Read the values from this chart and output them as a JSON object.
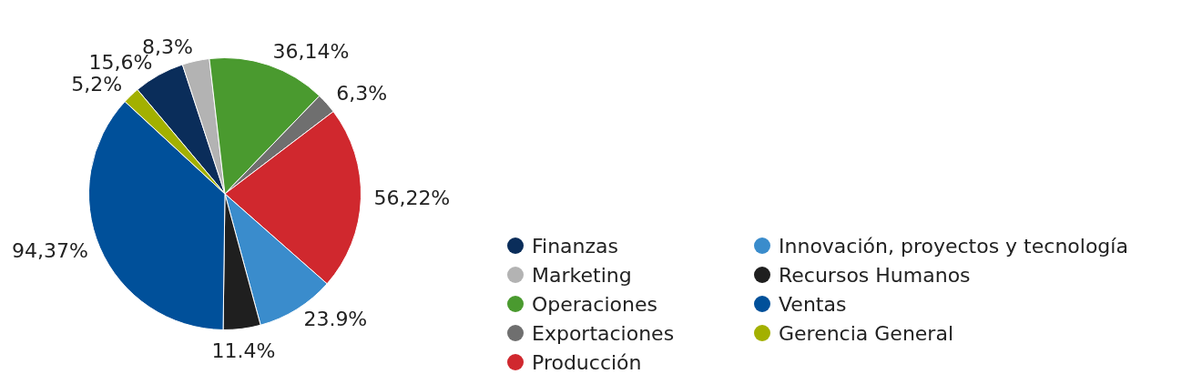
{
  "chart_data": {
    "type": "pie",
    "categories": [
      "Finanzas",
      "Marketing",
      "Operaciones",
      "Exportaciones",
      "Producción",
      "Innovación, proyectos y tecnología",
      "Recursos Humanos",
      "Ventas",
      "Gerencia General"
    ],
    "values": [
      15.6,
      8.3,
      36.14,
      6.3,
      56.22,
      23.9,
      11.4,
      94.37,
      5.2
    ],
    "value_labels": [
      "15,6%",
      "8,3%",
      "36,14%",
      "6,3%",
      "56,22%",
      "23.9%",
      "11.4%",
      "94,37%",
      "5,2%"
    ],
    "colors": [
      "#0a2d5a",
      "#b3b3b3",
      "#4a9a2f",
      "#6f6f6f",
      "#d0282e",
      "#3a8ccc",
      "#1f1f1f",
      "#00509a",
      "#a3b000"
    ],
    "legend": "right"
  }
}
